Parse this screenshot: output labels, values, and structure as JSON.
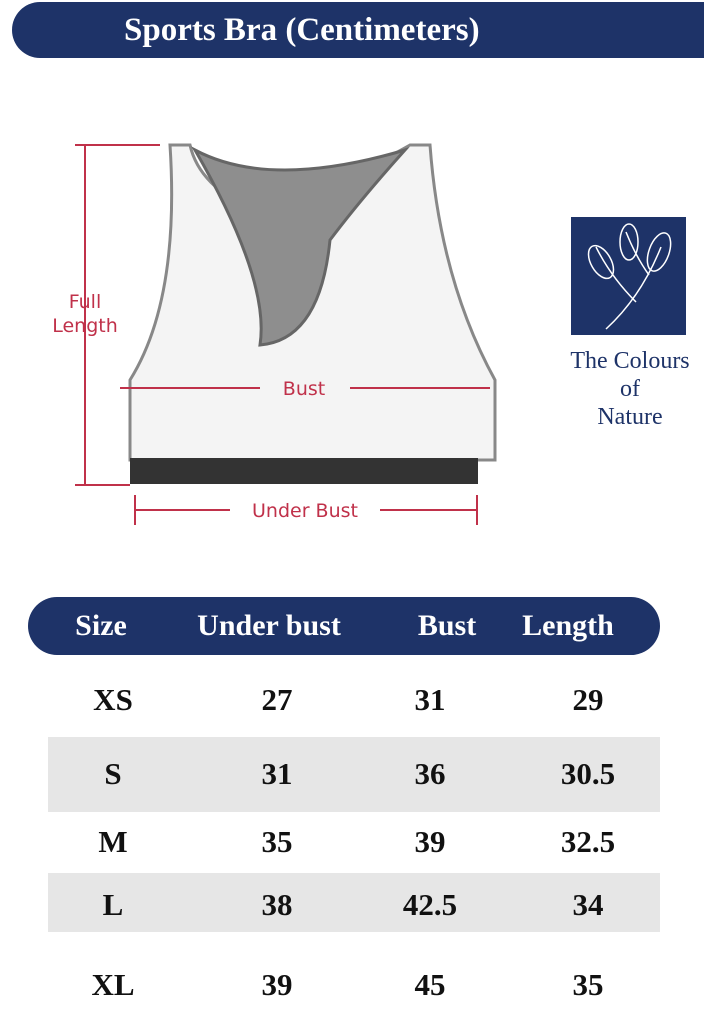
{
  "title": "Sports Bra (Centimeters)",
  "diagram": {
    "full_length": [
      "Full",
      "Length"
    ],
    "bust": "Bust",
    "under_bust": "Under Bust"
  },
  "brand": {
    "line1": "The Colours",
    "line2": "of",
    "line3": "Nature",
    "color": "#1e3368"
  },
  "table": {
    "headers": [
      "Size",
      "Under bust",
      "Bust",
      "Length"
    ],
    "rows": [
      [
        "XS",
        "27",
        "31",
        "29"
      ],
      [
        "S",
        "31",
        "36",
        "30.5"
      ],
      [
        "M",
        "35",
        "39",
        "32.5"
      ],
      [
        "L",
        "38",
        "42.5",
        "34"
      ],
      [
        "XL",
        "39",
        "45",
        "35"
      ]
    ]
  }
}
